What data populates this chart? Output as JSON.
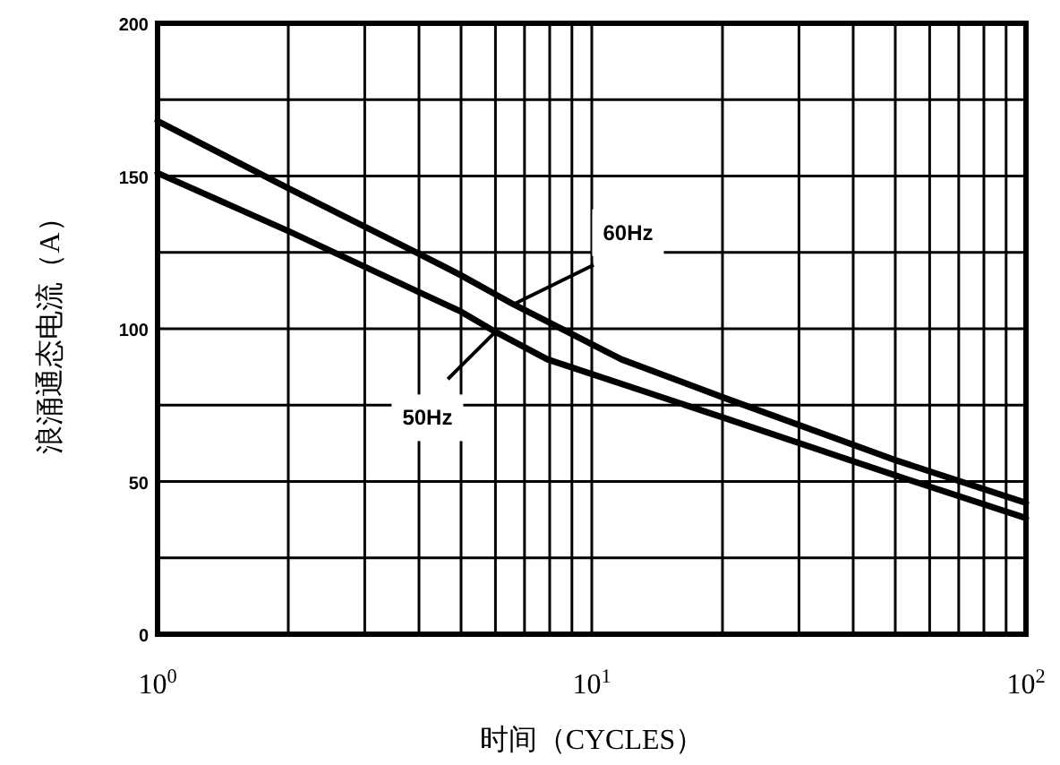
{
  "chart_data": {
    "type": "line",
    "xlabel": "时间（CYCLES）",
    "ylabel": "浪涌通态电流（A）",
    "log": "x",
    "xlim": [
      1,
      100
    ],
    "ylim": [
      0,
      200
    ],
    "xticks": [
      {
        "value": 1,
        "label": "10$^{0}$"
      },
      {
        "value": 2,
        "label": null
      },
      {
        "value": 3,
        "label": null
      },
      {
        "value": 4,
        "label": null
      },
      {
        "value": 5,
        "label": null
      },
      {
        "value": 6,
        "label": null
      },
      {
        "value": 7,
        "label": null
      },
      {
        "value": 8,
        "label": null
      },
      {
        "value": 9,
        "label": null
      },
      {
        "value": 10,
        "label": "10$^{1}$"
      },
      {
        "value": 20,
        "label": null
      },
      {
        "value": 30,
        "label": null
      },
      {
        "value": 40,
        "label": null
      },
      {
        "value": 50,
        "label": null
      },
      {
        "value": 60,
        "label": null
      },
      {
        "value": 70,
        "label": null
      },
      {
        "value": 80,
        "label": null
      },
      {
        "value": 90,
        "label": null
      },
      {
        "value": 100,
        "label": "10$^{2}$"
      }
    ],
    "yticks": [
      0,
      {
        "value": 25,
        "label": null
      },
      50,
      {
        "value": 75,
        "label": null
      },
      100,
      {
        "value": 125,
        "label": null
      },
      150,
      {
        "value": 175,
        "label": null
      },
      200
    ],
    "grid": true,
    "line_style": "solid",
    "series": [
      {
        "color": "#000000",
        "x": [
          1,
          2,
          4,
          5,
          6.6,
          11.7,
          20,
          50,
          100
        ],
        "values": [
          168,
          146,
          124.5,
          117.5,
          108,
          90,
          77.6,
          57,
          43
        ]
      },
      {
        "color": "#000000",
        "x": [
          1,
          2,
          4,
          5,
          6,
          7.9,
          20,
          50,
          100
        ],
        "values": [
          151,
          132,
          112,
          105.6,
          99,
          90,
          71,
          52,
          38
        ]
      }
    ],
    "annotations": [
      {
        "text": "60Hz",
        "x": 6.6,
        "y": 108
      },
      {
        "text": "50Hz",
        "x": 6,
        "y": 99
      }
    ]
  }
}
